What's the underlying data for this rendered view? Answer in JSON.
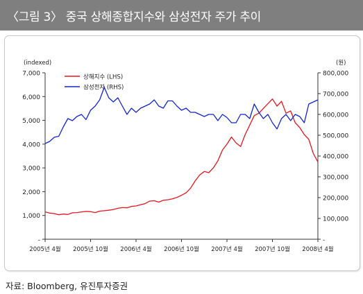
{
  "title": "〈그림 3〉 중국 상해종합지수와 삼성전자 주가 추이",
  "source": "자료: Bloomberg, 유진투자증권",
  "chart_data": {
    "type": "line",
    "ylabel_left": "(indexed)",
    "ylabel_right": "(원)",
    "ylim_left": [
      0,
      7000
    ],
    "ylim_right": [
      0,
      800000
    ],
    "yticks_left": [
      "-",
      "1,000",
      "2,000",
      "3,000",
      "4,000",
      "5,000",
      "6,000",
      "7,000"
    ],
    "yticks_right": [
      "-",
      "100,000",
      "200,000",
      "300,000",
      "400,000",
      "500,000",
      "600,000",
      "700,000",
      "800,000"
    ],
    "xticks": [
      "2005년 4월",
      "2005년 10월",
      "2006년 4월",
      "2006년 10월",
      "2007년 4월",
      "2007년 10월",
      "2008년 4월"
    ],
    "legend_position": "top-left",
    "series": [
      {
        "name": "상해지수 (LHS)",
        "axis": "left",
        "color": "#e8141c",
        "x": [
          0,
          0.1,
          0.2,
          0.3,
          0.4,
          0.5,
          0.6,
          0.7,
          0.8,
          0.9,
          1.0,
          1.1,
          1.2,
          1.3,
          1.4,
          1.5,
          1.6,
          1.7,
          1.8,
          1.9,
          2.0,
          2.1,
          2.2,
          2.3,
          2.4,
          2.5,
          2.6,
          2.7,
          2.8,
          2.9,
          3.0,
          3.1,
          3.2,
          3.3,
          3.4,
          3.5,
          3.6,
          3.7,
          3.8,
          3.9,
          4.0,
          4.1,
          4.2,
          4.3,
          4.4,
          4.5,
          4.6,
          4.7,
          4.8,
          4.9,
          5.0,
          5.1,
          5.2,
          5.3,
          5.4,
          5.5,
          5.6,
          5.7,
          5.8,
          5.9,
          6.0
        ],
        "values": [
          1150,
          1100,
          1080,
          1030,
          1060,
          1040,
          1110,
          1120,
          1150,
          1170,
          1160,
          1120,
          1180,
          1200,
          1220,
          1250,
          1300,
          1330,
          1320,
          1380,
          1400,
          1450,
          1500,
          1600,
          1620,
          1560,
          1640,
          1660,
          1700,
          1760,
          1850,
          1950,
          2150,
          2450,
          2700,
          2850,
          2800,
          3000,
          3300,
          3750,
          4000,
          4300,
          4050,
          3900,
          4400,
          4800,
          5200,
          5300,
          5500,
          5700,
          5900,
          5600,
          5800,
          5300,
          5400,
          4900,
          4700,
          4400,
          4200,
          3600,
          3250
        ]
      },
      {
        "name": "삼성전자 (RHS)",
        "axis": "right",
        "color": "#1023d8",
        "x": [
          0,
          0.1,
          0.2,
          0.3,
          0.4,
          0.5,
          0.6,
          0.7,
          0.8,
          0.9,
          1.0,
          1.1,
          1.2,
          1.3,
          1.4,
          1.5,
          1.6,
          1.7,
          1.8,
          1.9,
          2.0,
          2.1,
          2.2,
          2.3,
          2.4,
          2.5,
          2.6,
          2.7,
          2.8,
          2.9,
          3.0,
          3.1,
          3.2,
          3.3,
          3.4,
          3.5,
          3.6,
          3.7,
          3.8,
          3.9,
          4.0,
          4.1,
          4.2,
          4.3,
          4.4,
          4.5,
          4.6,
          4.7,
          4.8,
          4.9,
          5.0,
          5.1,
          5.2,
          5.3,
          5.4,
          5.5,
          5.6,
          5.7,
          5.8,
          5.9,
          6.0
        ],
        "values": [
          460000,
          470000,
          490000,
          495000,
          540000,
          580000,
          570000,
          590000,
          600000,
          575000,
          620000,
          640000,
          670000,
          730000,
          680000,
          660000,
          680000,
          640000,
          600000,
          630000,
          610000,
          630000,
          640000,
          650000,
          670000,
          640000,
          630000,
          665000,
          665000,
          640000,
          620000,
          630000,
          610000,
          610000,
          600000,
          590000,
          600000,
          600000,
          570000,
          600000,
          585000,
          560000,
          560000,
          600000,
          600000,
          580000,
          650000,
          610000,
          580000,
          600000,
          560000,
          530000,
          580000,
          600000,
          570000,
          600000,
          590000,
          560000,
          650000,
          660000,
          670000
        ]
      }
    ]
  }
}
